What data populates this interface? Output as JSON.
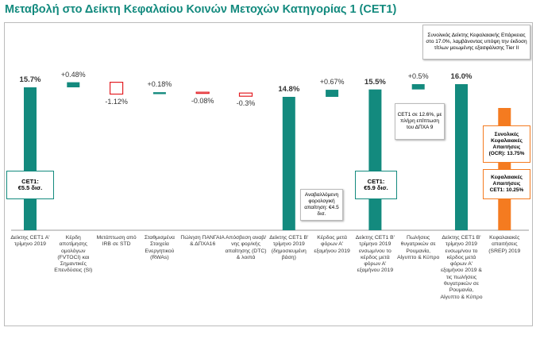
{
  "chart_data": {
    "type": "waterfall",
    "title": "Μεταβολή στο Δείκτη Κεφαλαίου Κοινών Μετοχών Κατηγορίας 1 (CET1)",
    "categories": [
      "Δείκτης CET1 Α' τρίμηνο 2019",
      "Κέρδη αποτίμησης ομολόγων (FVTOCI) και Σημαντικές Επενδύσεις (SI)",
      "Μετάπτωση από IRB σε STD",
      "Σταθμισμένα Στοιχεία Ενεργητικού (RWAs)",
      "Πώληση ΠΑΝΓΑΙΑ & ΔΠΧΑ16",
      "Απόσβεση αναβ/νης φορ/κής απαίτησης (DTC) & λοιπά",
      "Δείκτης CET1 Β' τρίμηνο 2019 (δημοσιευμένη βάση)",
      "Κέρδος μετά φόρων Α' εξαμήνου 2019",
      "Δείκτης CET1 Β' τρίμηνο 2019 ενσωμ/νου το κέρδος μετά φόρων Α' εξαμήνου 2019",
      "Πωλήσεις θυγατρικών σε Ρουμανία, Αίγυπτο & Κύπρο",
      "Δείκτης CET1 Β' τρίμηνο 2019 ενσωμ/νου το κέρδος μετά φόρων Α' εξαμήνου 2019 & τις πωλήσεις θυγατρικών σε Ρουμανία, Αίγυπτο & Κύπρο",
      "Κεφαλαιακές απαιτήσεις (SREP) 2019"
    ],
    "values": [
      15.7,
      0.48,
      -1.12,
      0.18,
      -0.08,
      -0.3,
      14.8,
      0.67,
      15.5,
      0.5,
      16.0,
      13.75
    ],
    "value_labels": [
      "15.7%",
      "+0.48%",
      "-1.12%",
      "+0.18%",
      "-0.08%",
      "-0.3%",
      "14.8%",
      "+0.67%",
      "15.5%",
      "+0.5%",
      "16.0%",
      null
    ],
    "measure": [
      "total",
      "relative",
      "relative",
      "relative",
      "relative",
      "relative",
      "total",
      "relative",
      "total",
      "relative",
      "total",
      "total"
    ],
    "colors": [
      "#138a7e",
      "#138a7e",
      "#e31e24",
      "#138a7e",
      "#e31e24",
      "#e31e24",
      "#138a7e",
      "#138a7e",
      "#138a7e",
      "#138a7e",
      "#138a7e",
      "#f47b20"
    ],
    "ylim": [
      2.2,
      17.5
    ],
    "annotations": [
      "CET1:\n€5.5 δισ.",
      "Αναβαλλόμενη φορολογική απαίτηση: €4.5 δισ.",
      "CET1:\n€5.9 δισ.",
      "CET1 σε 12.6%, με πλήρη επίπτωση του ΔΠΧΑ 9",
      "Συνολικός Δείκτης Κεφαλαιακής Επάρκειας στο 17.0%, λαμβάνοντας υπόψη την έκδοση τίτλων μειωμένης εξασφάλισης Tier II",
      "Συνολικές Κεφαλαιακές Απαιτήσεις (OCR): 13.75%",
      "Κεφαλαιακές Απαιτήσεις CET1: 10.25%"
    ]
  }
}
